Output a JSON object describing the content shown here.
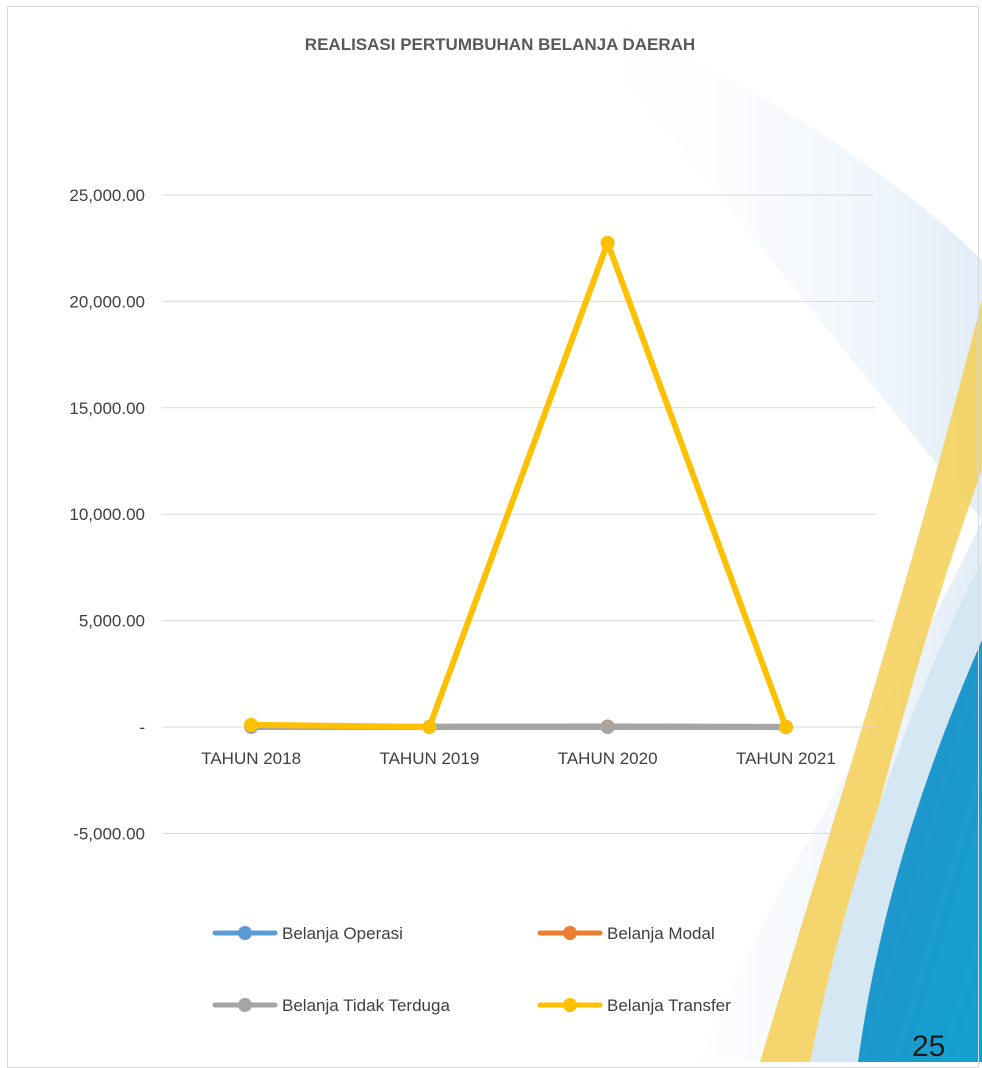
{
  "page": {
    "number": "25"
  },
  "colors": {
    "operasi": "#5B9BD5",
    "modal": "#ED7D31",
    "tidak_terduga": "#A5A5A5",
    "transfer": "#FFC000",
    "grid": "#d9d9d9"
  },
  "chart_data": {
    "type": "line",
    "title": "REALISASI PERTUMBUHAN BELANJA DAERAH",
    "xlabel": "",
    "ylabel": "",
    "categories": [
      "TAHUN 2018",
      "TAHUN 2019",
      "TAHUN 2020",
      "TAHUN 2021"
    ],
    "y_ticks": [
      {
        "value": 25000,
        "label": "25,000.00"
      },
      {
        "value": 20000,
        "label": "20,000.00"
      },
      {
        "value": 15000,
        "label": "15,000.00"
      },
      {
        "value": 10000,
        "label": "10,000.00"
      },
      {
        "value": 5000,
        "label": "5,000.00"
      },
      {
        "value": 0,
        "label": "-"
      },
      {
        "value": -5000,
        "label": "-5,000.00"
      }
    ],
    "ylim": [
      -5000,
      25000
    ],
    "grid": true,
    "legend_position": "bottom",
    "series": [
      {
        "name": "Belanja Operasi",
        "color_key": "operasi",
        "values": [
          10,
          5,
          20,
          -5
        ]
      },
      {
        "name": "Belanja Modal",
        "color_key": "modal",
        "values": [
          null,
          10,
          15,
          5
        ]
      },
      {
        "name": "Belanja Tidak Terduga",
        "color_key": "tidak_terduga",
        "values": [
          0,
          0,
          0,
          0
        ]
      },
      {
        "name": "Belanja Transfer",
        "color_key": "transfer",
        "values": [
          100,
          0,
          22750,
          0
        ]
      }
    ]
  }
}
